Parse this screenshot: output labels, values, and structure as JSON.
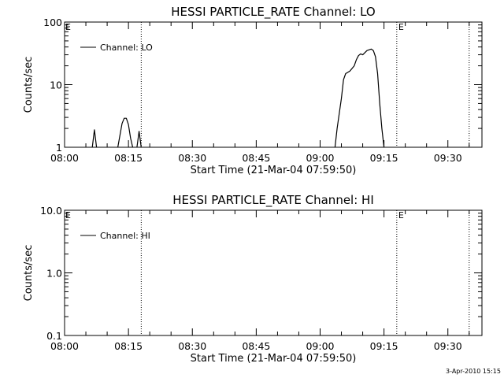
{
  "chart_data": [
    {
      "type": "line",
      "title": "HESSI PARTICLE_RATE Channel: LO",
      "xlabel": "Start Time (21-Mar-04 07:59:50)",
      "ylabel": "Counts/sec",
      "yscale": "log",
      "ylim": [
        1,
        100
      ],
      "xlim": [
        "08:00",
        "09:38"
      ],
      "xticks": [
        "08:00",
        "08:15",
        "08:30",
        "08:45",
        "09:00",
        "09:15",
        "09:30"
      ],
      "yticks": [
        "1",
        "10",
        "100"
      ],
      "legend": {
        "placement": "top-left",
        "entries": [
          "Channel: LO"
        ]
      },
      "grid": false,
      "markers": [
        {
          "time": "08:18",
          "style": "dotted"
        },
        {
          "time": "09:18",
          "style": "dotted",
          "label": "E"
        },
        {
          "time": "09:35",
          "style": "dotted"
        }
      ],
      "corner_flag": "E",
      "series": [
        {
          "name": "Channel: LO",
          "segments": [
            [
              [
                "08:06.5",
                1
              ],
              [
                "08:07",
                1.9
              ],
              [
                "08:07.5",
                1
              ]
            ],
            [
              [
                "08:12.5",
                1
              ],
              [
                "08:13.5",
                2.4
              ],
              [
                "08:14",
                2.9
              ],
              [
                "08:14.5",
                2.9
              ],
              [
                "08:15",
                2.3
              ],
              [
                "08:15.5",
                1.4
              ],
              [
                "08:16",
                1
              ]
            ],
            [
              [
                "08:17",
                1
              ],
              [
                "08:17.5",
                1.8
              ],
              [
                "08:18",
                1
              ]
            ],
            [
              [
                "09:03.5",
                1
              ],
              [
                "09:04",
                2
              ],
              [
                "09:05",
                6
              ],
              [
                "09:05.5",
                12
              ],
              [
                "09:06",
                15
              ],
              [
                "09:07",
                16.5
              ],
              [
                "09:08",
                20
              ],
              [
                "09:08.5",
                25
              ],
              [
                "09:09",
                29
              ],
              [
                "09:09.5",
                31
              ],
              [
                "09:10",
                30
              ],
              [
                "09:11",
                35
              ],
              [
                "09:12",
                37
              ],
              [
                "09:12.5",
                35
              ],
              [
                "09:13",
                28
              ],
              [
                "09:13.5",
                15
              ],
              [
                "09:14",
                5
              ],
              [
                "09:14.5",
                2
              ],
              [
                "09:15",
                1
              ]
            ]
          ]
        }
      ]
    },
    {
      "type": "line",
      "title": "HESSI PARTICLE_RATE Channel: HI",
      "xlabel": "Start Time (21-Mar-04 07:59:50)",
      "ylabel": "Counts/sec",
      "yscale": "log",
      "ylim": [
        0.1,
        10
      ],
      "xlim": [
        "08:00",
        "09:38"
      ],
      "xticks": [
        "08:00",
        "08:15",
        "08:30",
        "08:45",
        "09:00",
        "09:15",
        "09:30"
      ],
      "yticks": [
        "0.1",
        "1.0",
        "10.0"
      ],
      "legend": {
        "placement": "top-left",
        "entries": [
          "Channel: HI"
        ]
      },
      "grid": false,
      "markers": [
        {
          "time": "08:18",
          "style": "dotted"
        },
        {
          "time": "09:18",
          "style": "dotted",
          "label": "E"
        },
        {
          "time": "09:35",
          "style": "dotted"
        }
      ],
      "corner_flag": "E",
      "series": [
        {
          "name": "Channel: HI",
          "segments": []
        }
      ]
    }
  ],
  "footer": {
    "timestamp": "3-Apr-2010 15:15"
  }
}
